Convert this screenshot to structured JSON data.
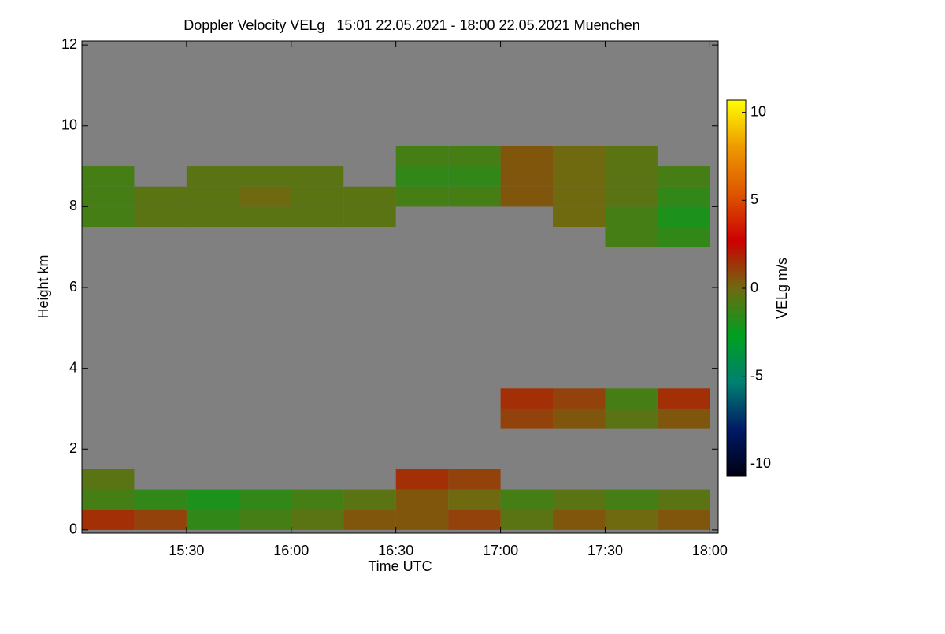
{
  "chart_data": {
    "type": "heatmap",
    "title": "Doppler Velocity VELg   15:01 22.05.2021 - 18:00 22.05.2021 Muenchen",
    "xlabel": "Time UTC",
    "ylabel": "Height km",
    "xlim": [
      15.0,
      18.04
    ],
    "ylim": [
      -0.08,
      12.1
    ],
    "xticks": [
      {
        "value": 15.5,
        "label": "15:30"
      },
      {
        "value": 16.0,
        "label": "16:00"
      },
      {
        "value": 16.5,
        "label": "16:30"
      },
      {
        "value": 17.0,
        "label": "17:00"
      },
      {
        "value": 17.5,
        "label": "17:30"
      },
      {
        "value": 18.0,
        "label": "18:00"
      }
    ],
    "yticks": [
      0,
      2,
      4,
      6,
      8,
      10,
      12
    ],
    "missing_color": "#808080",
    "x_bins": [
      15.0,
      15.25,
      15.5,
      15.75,
      16.0,
      16.25,
      16.5,
      16.75,
      17.0,
      17.25,
      17.5,
      17.75,
      18.0
    ],
    "y_bins": [
      0,
      0.5,
      1.0,
      1.5,
      2.5,
      3.0,
      3.5,
      7.0,
      7.5,
      8.0,
      8.5,
      9.0,
      9.5,
      12.0
    ],
    "values": [
      [
        1.5,
        1.0,
        -1.5,
        -1.0,
        -0.5,
        0.5,
        0.5,
        1.0,
        -0.5,
        0.5,
        0.0,
        0.5
      ],
      [
        -1.0,
        -1.5,
        -2.0,
        -1.5,
        -1.0,
        -0.5,
        0.5,
        0.0,
        -1.0,
        -0.5,
        -1.0,
        -0.5
      ],
      [
        -0.5,
        null,
        null,
        null,
        null,
        null,
        1.5,
        1.0,
        null,
        null,
        null,
        null
      ],
      [
        null,
        null,
        null,
        null,
        null,
        null,
        null,
        null,
        null,
        null,
        null,
        null
      ],
      [
        null,
        null,
        null,
        null,
        null,
        null,
        null,
        null,
        1.0,
        0.5,
        -0.5,
        0.5
      ],
      [
        null,
        null,
        null,
        null,
        null,
        null,
        null,
        null,
        1.5,
        1.0,
        -1.0,
        1.5
      ],
      [
        null,
        null,
        null,
        null,
        null,
        null,
        null,
        null,
        null,
        null,
        null,
        null
      ],
      [
        null,
        null,
        null,
        null,
        null,
        null,
        null,
        null,
        null,
        null,
        -1.0,
        -1.5
      ],
      [
        -1.0,
        -0.5,
        -0.5,
        -0.5,
        -0.5,
        -0.5,
        null,
        null,
        null,
        0.0,
        -1.0,
        -2.0
      ],
      [
        -1.0,
        -0.5,
        -0.5,
        0.0,
        -0.5,
        -0.5,
        -1.0,
        -1.0,
        0.5,
        0.0,
        -0.5,
        -1.5
      ],
      [
        -1.0,
        null,
        -0.5,
        -0.5,
        -0.5,
        null,
        -1.5,
        -1.5,
        0.5,
        0.0,
        -0.5,
        -1.0
      ],
      [
        null,
        null,
        null,
        null,
        null,
        null,
        -1.0,
        -1.0,
        0.5,
        0.0,
        -0.5,
        null
      ],
      [
        null,
        null,
        null,
        null,
        null,
        null,
        null,
        null,
        null,
        null,
        null,
        null
      ]
    ],
    "colorbar": {
      "label": "VELg m/s",
      "clim": [
        -10.7,
        10.7
      ],
      "ticks": [
        -10,
        -5,
        0,
        5,
        10
      ],
      "colors": [
        "#000010",
        "#001a66",
        "#008070",
        "#00a020",
        "#6f6a10",
        "#cc0000",
        "#dd5500",
        "#ee9900",
        "#ffff00"
      ]
    }
  }
}
